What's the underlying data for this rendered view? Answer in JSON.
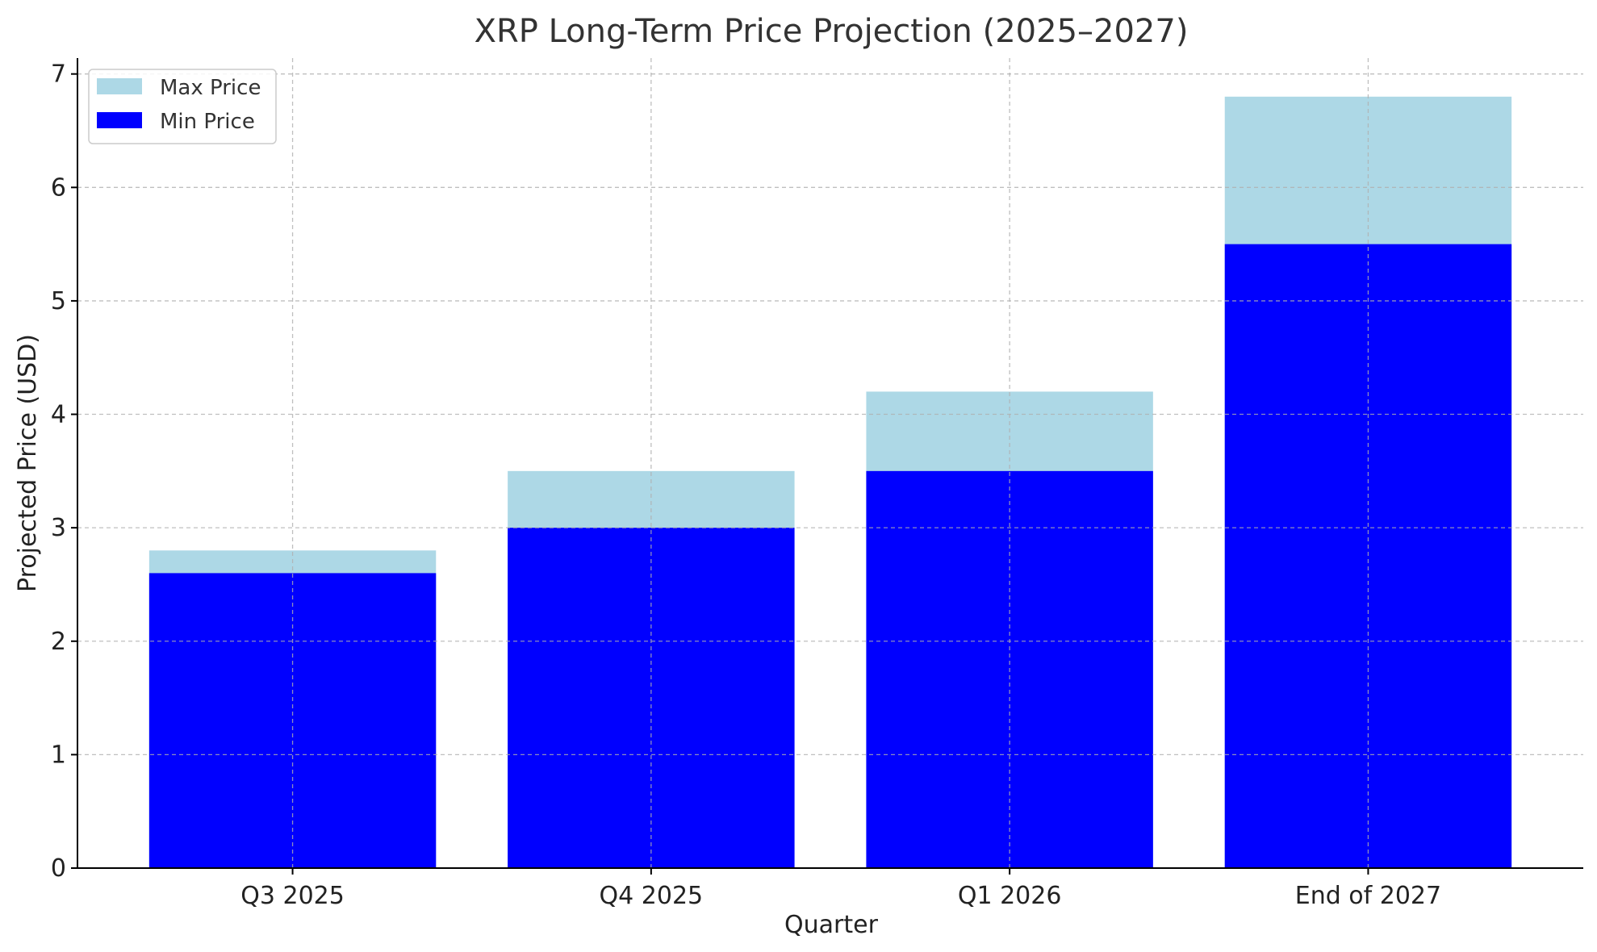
{
  "chart_data": {
    "type": "bar",
    "title": "XRP Long-Term Price Projection (2025–2027)",
    "xlabel": "Quarter",
    "ylabel": "Projected Price (USD)",
    "categories": [
      "Q3 2025",
      "Q4 2025",
      "Q1 2026",
      "End of 2027"
    ],
    "series": [
      {
        "name": "Max Price",
        "values": [
          2.8,
          3.5,
          4.2,
          6.8
        ],
        "color": "#add8e6"
      },
      {
        "name": "Min Price",
        "values": [
          2.6,
          3.0,
          3.5,
          5.5
        ],
        "color": "#0000ff"
      }
    ],
    "ylim": [
      0,
      7.14
    ],
    "yticks": [
      0,
      1,
      2,
      3,
      4,
      5,
      6,
      7
    ],
    "grid": true,
    "legend_position": "top-left",
    "stacking": "overlay"
  }
}
